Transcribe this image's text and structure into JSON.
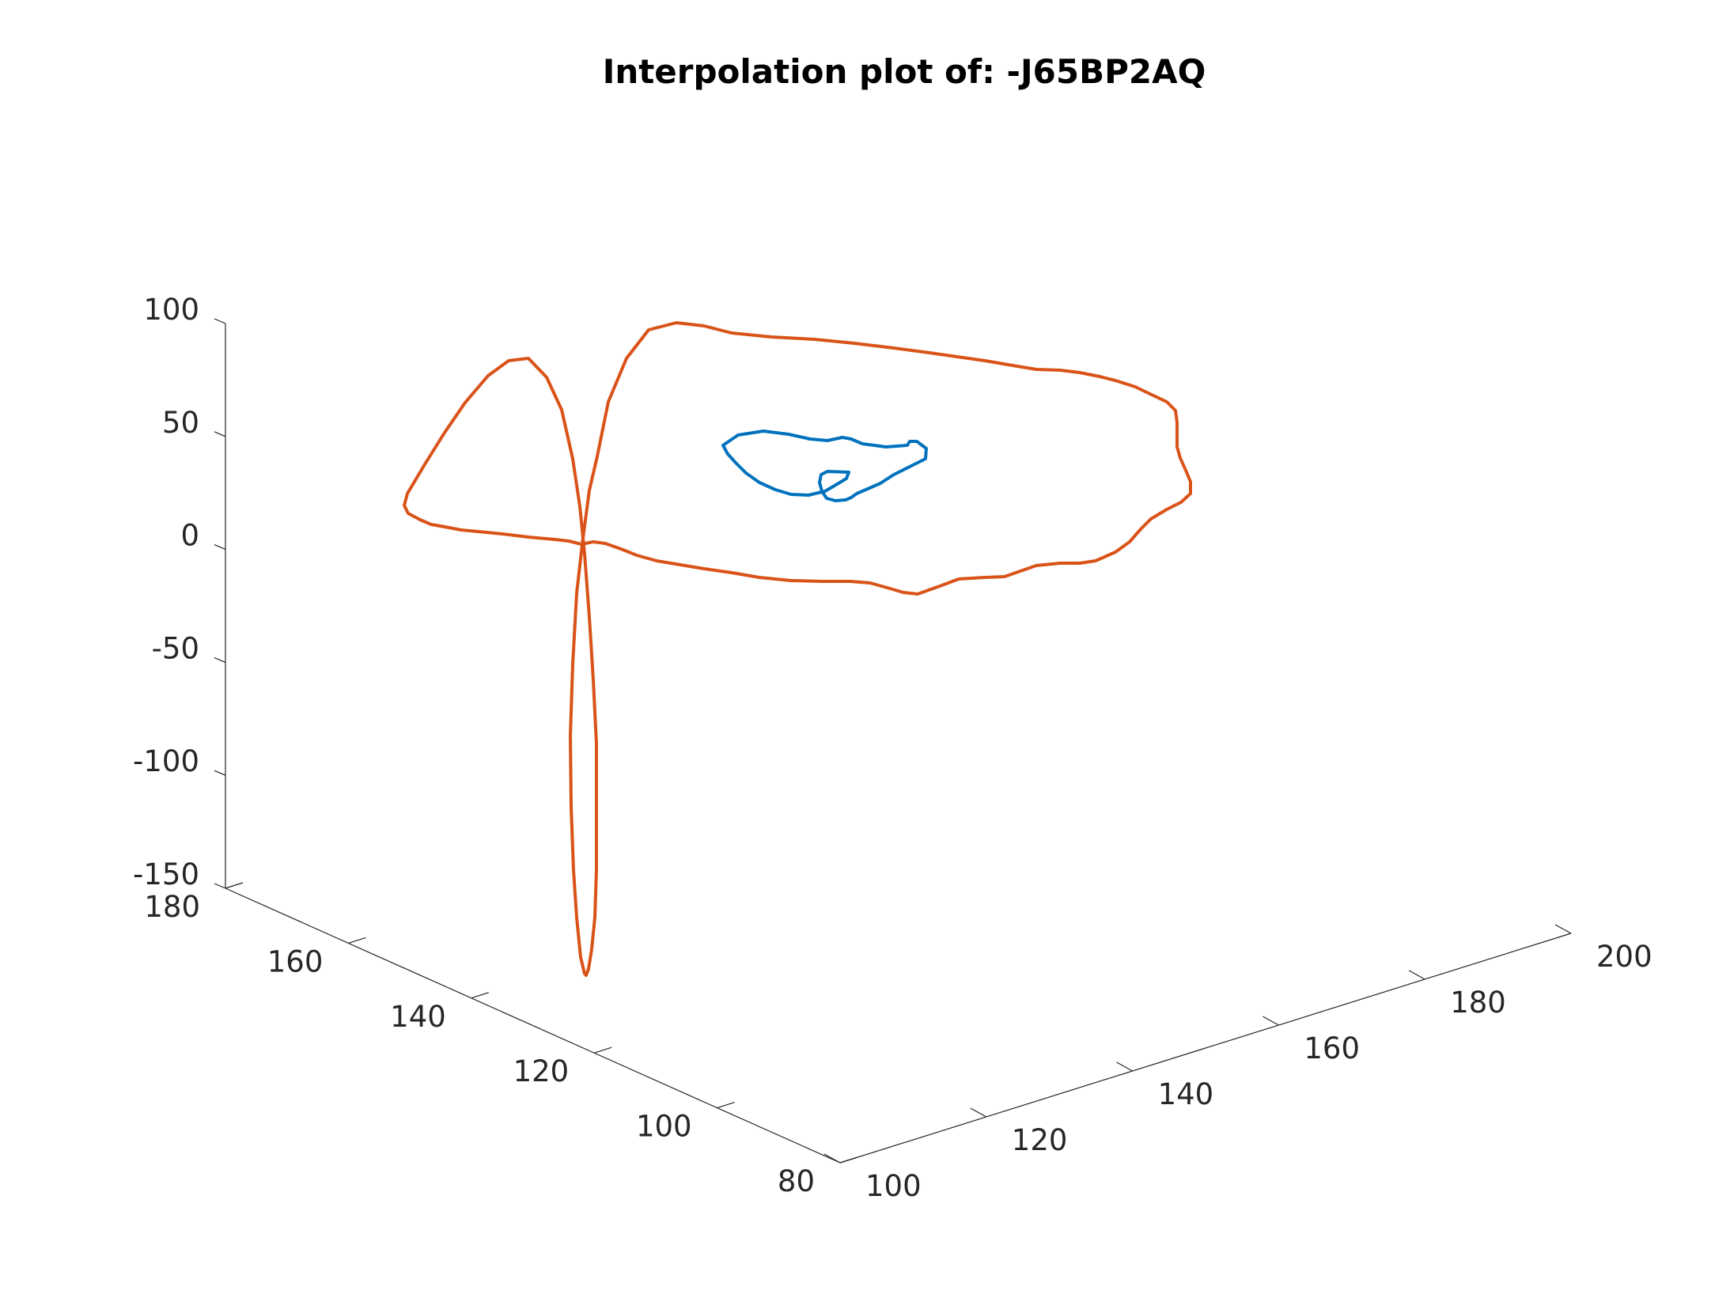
{
  "chart_data": {
    "type": "line",
    "title": "Interpolation plot of: -J65BP2AQ",
    "xlabel": "",
    "ylabel": "",
    "zlabel": "",
    "z_axis": {
      "ticks": [
        -150,
        -100,
        -50,
        0,
        50,
        100
      ],
      "labels": [
        "-150",
        "-100",
        "-50",
        "0",
        "50",
        "100"
      ]
    },
    "depth_axis": {
      "ticks": [
        80,
        100,
        120,
        140,
        160,
        180
      ],
      "labels": [
        "80",
        "100",
        "120",
        "140",
        "160",
        "180"
      ]
    },
    "width_axis": {
      "ticks": [
        100,
        120,
        140,
        160,
        180,
        200
      ],
      "labels": [
        "100",
        "120",
        "140",
        "160",
        "180",
        "200"
      ]
    },
    "grid": false,
    "colors": {
      "series1": "#0072BD",
      "series2": "#D95319"
    },
    "series": [
      {
        "color": "#0072BD",
        "points": [
          [
            914,
            563
          ],
          [
            933,
            550
          ],
          [
            965,
            545
          ],
          [
            997,
            549
          ],
          [
            1024,
            555
          ],
          [
            1046,
            557
          ],
          [
            1065,
            553
          ],
          [
            1076,
            555
          ],
          [
            1090,
            561
          ],
          [
            1120,
            565
          ],
          [
            1147,
            563
          ],
          [
            1150,
            558
          ],
          [
            1159,
            558
          ],
          [
            1171,
            567
          ],
          [
            1170,
            580
          ],
          [
            1150,
            590
          ],
          [
            1130,
            600
          ],
          [
            1113,
            611
          ],
          [
            1097,
            618
          ],
          [
            1083,
            624
          ],
          [
            1076,
            629
          ],
          [
            1069,
            632
          ],
          [
            1056,
            633
          ],
          [
            1045,
            630
          ],
          [
            1039,
            621
          ],
          [
            1036,
            610
          ],
          [
            1038,
            600
          ],
          [
            1046,
            596
          ],
          [
            1073,
            597
          ],
          [
            1070,
            605
          ],
          [
            1055,
            614
          ],
          [
            1043,
            621
          ],
          [
            1022,
            626
          ],
          [
            1000,
            625
          ],
          [
            980,
            619
          ],
          [
            960,
            610
          ],
          [
            943,
            598
          ],
          [
            930,
            585
          ],
          [
            920,
            574
          ],
          [
            914,
            563
          ]
        ]
      },
      {
        "color": "#D95319",
        "points": [
          [
            735,
            688
          ],
          [
            719,
            684
          ],
          [
            701,
            682
          ],
          [
            668,
            679
          ],
          [
            635,
            675
          ],
          [
            604,
            672
          ],
          [
            583,
            670
          ],
          [
            562,
            666
          ],
          [
            545,
            663
          ],
          [
            531,
            657
          ],
          [
            516,
            649
          ],
          [
            511,
            639
          ],
          [
            515,
            624
          ],
          [
            537,
            587
          ],
          [
            562,
            547
          ],
          [
            588,
            509
          ],
          [
            617,
            475
          ],
          [
            643,
            456
          ],
          [
            668,
            453
          ],
          [
            691,
            477
          ],
          [
            710,
            518
          ],
          [
            724,
            580
          ],
          [
            733,
            640
          ],
          [
            739,
            700
          ],
          [
            745,
            780
          ],
          [
            750,
            860
          ],
          [
            754,
            940
          ],
          [
            754,
            1020
          ],
          [
            754,
            1100
          ],
          [
            752,
            1160
          ],
          [
            748,
            1200
          ],
          [
            744,
            1225
          ],
          [
            741,
            1233
          ],
          [
            739,
            1231
          ],
          [
            734,
            1210
          ],
          [
            729,
            1160
          ],
          [
            725,
            1100
          ],
          [
            722,
            1020
          ],
          [
            721,
            930
          ],
          [
            724,
            840
          ],
          [
            729,
            750
          ],
          [
            737,
            680
          ],
          [
            745,
            620
          ],
          [
            755,
            577
          ],
          [
            769,
            508
          ],
          [
            792,
            453
          ],
          [
            820,
            417
          ],
          [
            855,
            408
          ],
          [
            890,
            412
          ],
          [
            925,
            421
          ],
          [
            975,
            426
          ],
          [
            1030,
            429
          ],
          [
            1080,
            434
          ],
          [
            1130,
            440
          ],
          [
            1175,
            446
          ],
          [
            1210,
            451
          ],
          [
            1245,
            456
          ],
          [
            1280,
            462
          ],
          [
            1310,
            467
          ],
          [
            1340,
            468
          ],
          [
            1365,
            471
          ],
          [
            1390,
            476
          ],
          [
            1410,
            481
          ],
          [
            1435,
            489
          ],
          [
            1458,
            500
          ],
          [
            1475,
            508
          ],
          [
            1486,
            519
          ],
          [
            1488,
            534
          ],
          [
            1488,
            565
          ],
          [
            1492,
            579
          ],
          [
            1500,
            597
          ],
          [
            1505,
            609
          ],
          [
            1505,
            624
          ],
          [
            1493,
            635
          ],
          [
            1475,
            644
          ],
          [
            1455,
            656
          ],
          [
            1442,
            669
          ],
          [
            1428,
            685
          ],
          [
            1410,
            698
          ],
          [
            1385,
            709
          ],
          [
            1365,
            712
          ],
          [
            1340,
            712
          ],
          [
            1310,
            715
          ],
          [
            1290,
            722
          ],
          [
            1270,
            729
          ],
          [
            1245,
            730
          ],
          [
            1212,
            732
          ],
          [
            1188,
            741
          ],
          [
            1160,
            751
          ],
          [
            1142,
            749
          ],
          [
            1125,
            744
          ],
          [
            1100,
            737
          ],
          [
            1075,
            735
          ],
          [
            1040,
            735
          ],
          [
            1000,
            734
          ],
          [
            960,
            730
          ],
          [
            925,
            724
          ],
          [
            890,
            719
          ],
          [
            860,
            714
          ],
          [
            830,
            709
          ],
          [
            805,
            702
          ],
          [
            785,
            694
          ],
          [
            765,
            687
          ],
          [
            750,
            685
          ],
          [
            735,
            688
          ]
        ]
      }
    ]
  }
}
